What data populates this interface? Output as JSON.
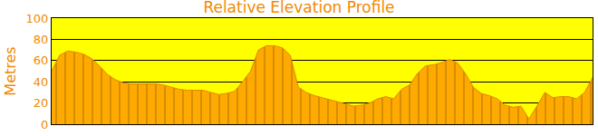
{
  "chart_data": {
    "type": "area",
    "title": "Relative Elevation Profile",
    "y_label": "Metres",
    "categories": [
      null,
      null,
      null,
      null,
      null,
      null,
      null,
      null,
      null,
      null,
      null,
      null,
      null,
      null,
      null,
      null,
      null,
      null,
      null,
      null,
      null,
      null,
      null,
      null,
      null,
      null,
      null,
      null,
      null,
      null,
      null,
      null,
      null,
      null,
      null,
      null,
      null,
      null,
      null,
      null,
      null,
      null,
      null,
      null,
      null,
      null,
      null,
      null,
      null,
      null,
      null,
      null,
      null,
      null,
      null,
      null,
      null,
      null,
      null,
      null,
      null,
      null,
      null,
      null,
      null,
      null,
      null,
      null,
      null
    ],
    "values": [
      50,
      65,
      69,
      68,
      66,
      62,
      55,
      47,
      42,
      39,
      38,
      38,
      38,
      38,
      37,
      35,
      33,
      32,
      32,
      32,
      30,
      28,
      29,
      31,
      40,
      50,
      70,
      74,
      74,
      72,
      65,
      35,
      30,
      27,
      25,
      23,
      21,
      19,
      17,
      18,
      20,
      24,
      26,
      24,
      33,
      37,
      48,
      55,
      56,
      58,
      61,
      58,
      48,
      35,
      29,
      27,
      24,
      18,
      16,
      17,
      5,
      17,
      30,
      25,
      26,
      26,
      24,
      30,
      44
    ],
    "color": "#ffaa00",
    "ylim": [
      0,
      100
    ],
    "yticks": [
      0,
      20,
      40,
      60,
      80,
      100
    ],
    "grid": true,
    "tick_labels": "y"
  }
}
